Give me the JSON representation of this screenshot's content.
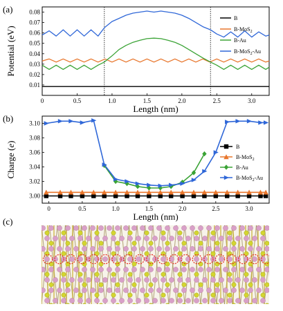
{
  "panels": {
    "a": {
      "label": "(a)"
    },
    "b": {
      "label": "(b)"
    },
    "c": {
      "label": "(c)"
    }
  },
  "chart_data": [
    {
      "type": "line",
      "panel": "(a)",
      "xlabel": "Length (nm)",
      "ylabel": "Potential (eV)",
      "xlim": [
        0,
        3.25
      ],
      "ylim": [
        0,
        0.085
      ],
      "xticks": [
        0,
        0.5,
        1.0,
        1.5,
        2.0,
        2.5,
        3.0
      ],
      "xtick_labels": [
        "0",
        "0.5",
        "1.0",
        "1.5",
        "2.0",
        "2.5",
        "3.0"
      ],
      "yticks": [
        0.01,
        0.02,
        0.03,
        0.04,
        0.05,
        0.06,
        0.07,
        0.08
      ],
      "ytick_labels": [
        "0.01",
        "0.02",
        "0.03",
        "0.04",
        "0.05",
        "0.06",
        "0.07",
        "0.08"
      ],
      "vlines": [
        0.89,
        2.41
      ],
      "legend_position": "right",
      "series": [
        {
          "name": "B",
          "color": "#000000",
          "x": [
            0,
            3.25
          ],
          "y": [
            0.0085,
            0.0085
          ]
        },
        {
          "name": "B-MoS",
          "name_sub": "2",
          "color": "#e8762c",
          "x": [
            0,
            0.1,
            0.2,
            0.3,
            0.4,
            0.5,
            0.6,
            0.7,
            0.8,
            0.9,
            1.0,
            1.1,
            1.2,
            1.3,
            1.4,
            1.5,
            1.6,
            1.7,
            1.8,
            1.9,
            2.0,
            2.1,
            2.2,
            2.3,
            2.4,
            2.5,
            2.6,
            2.7,
            2.8,
            2.9,
            3.0,
            3.1,
            3.2,
            3.25
          ],
          "y": [
            0.033,
            0.035,
            0.032,
            0.035,
            0.032,
            0.035,
            0.032,
            0.035,
            0.032,
            0.035,
            0.032,
            0.035,
            0.032,
            0.035,
            0.032,
            0.035,
            0.032,
            0.035,
            0.032,
            0.035,
            0.032,
            0.035,
            0.032,
            0.035,
            0.032,
            0.035,
            0.032,
            0.035,
            0.032,
            0.035,
            0.032,
            0.035,
            0.032,
            0.033
          ]
        },
        {
          "name": "B-Au",
          "color": "#3aa335",
          "x": [
            0,
            0.1,
            0.2,
            0.3,
            0.4,
            0.5,
            0.6,
            0.7,
            0.8,
            0.89,
            1.0,
            1.1,
            1.2,
            1.3,
            1.4,
            1.5,
            1.6,
            1.7,
            1.8,
            1.9,
            2.0,
            2.1,
            2.2,
            2.3,
            2.41,
            2.5,
            2.6,
            2.7,
            2.8,
            2.9,
            3.0,
            3.1,
            3.2,
            3.25
          ],
          "y": [
            0.029,
            0.025,
            0.029,
            0.025,
            0.029,
            0.025,
            0.029,
            0.025,
            0.029,
            0.032,
            0.038,
            0.044,
            0.048,
            0.051,
            0.053,
            0.0545,
            0.055,
            0.0545,
            0.053,
            0.051,
            0.048,
            0.044,
            0.04,
            0.036,
            0.032,
            0.029,
            0.025,
            0.029,
            0.025,
            0.029,
            0.025,
            0.029,
            0.025,
            0.027
          ]
        },
        {
          "name": "B-MoS",
          "name_sub": "2",
          "name_tail": "-Au",
          "color": "#2f67d8",
          "x": [
            0,
            0.1,
            0.2,
            0.3,
            0.4,
            0.5,
            0.6,
            0.7,
            0.8,
            0.89,
            1.0,
            1.1,
            1.2,
            1.3,
            1.4,
            1.5,
            1.6,
            1.7,
            1.8,
            1.9,
            2.0,
            2.1,
            2.2,
            2.3,
            2.41,
            2.5,
            2.6,
            2.7,
            2.8,
            2.9,
            3.0,
            3.1,
            3.2,
            3.25
          ],
          "y": [
            0.058,
            0.062,
            0.057,
            0.063,
            0.057,
            0.063,
            0.057,
            0.063,
            0.057,
            0.065,
            0.071,
            0.074,
            0.077,
            0.079,
            0.08,
            0.081,
            0.08,
            0.081,
            0.08,
            0.079,
            0.077,
            0.074,
            0.07,
            0.066,
            0.063,
            0.059,
            0.056,
            0.061,
            0.056,
            0.062,
            0.056,
            0.061,
            0.057,
            0.058
          ]
        }
      ]
    },
    {
      "type": "line",
      "panel": "(b)",
      "xlabel": "Length (nm)",
      "ylabel": "Charge (e)",
      "xlim": [
        -0.1,
        3.3
      ],
      "ylim": [
        2.99,
        3.11
      ],
      "xticks": [
        0,
        0.5,
        1.0,
        1.5,
        2.0,
        2.5,
        3.0
      ],
      "xtick_labels": [
        "0",
        "0.5",
        "1.0",
        "1.5",
        "2.0",
        "2.5",
        "3.0"
      ],
      "yticks": [
        3.0,
        3.02,
        3.04,
        3.06,
        3.08,
        3.1
      ],
      "ytick_labels": [
        "3.00",
        "3.02",
        "3.04",
        "3.06",
        "3.08",
        "3.10"
      ],
      "legend_position": "right",
      "x": [
        -0.04,
        0.17,
        0.33,
        0.5,
        0.67,
        0.83,
        1.0,
        1.17,
        1.33,
        1.5,
        1.67,
        1.83,
        2.0,
        2.17,
        2.33,
        2.5,
        2.67,
        2.83,
        3.0,
        3.17,
        3.25
      ],
      "series": [
        {
          "name": "B",
          "color": "#000000",
          "marker": "square",
          "y": [
            3.0,
            3.0,
            3.0,
            3.0,
            3.0,
            3.0,
            3.0,
            3.0,
            3.0,
            3.0,
            3.0,
            3.0,
            3.0,
            3.0,
            3.0,
            3.0,
            3.0,
            3.0,
            3.0,
            3.0,
            3.0
          ]
        },
        {
          "name": "B-MoS",
          "name_sub": "2",
          "color": "#e8762c",
          "marker": "triangle",
          "y": [
            3.005,
            3.005,
            3.005,
            3.005,
            3.005,
            3.005,
            3.005,
            3.005,
            3.005,
            3.005,
            3.005,
            3.005,
            3.005,
            3.005,
            3.005,
            3.005,
            3.005,
            3.005,
            3.005,
            3.005,
            3.005
          ]
        },
        {
          "name": "B-Au",
          "color": "#3aa335",
          "marker": "diamond",
          "x": [
            0.83,
            1.0,
            1.17,
            1.33,
            1.5,
            1.67,
            1.83,
            2.0,
            2.17,
            2.33
          ],
          "y": [
            3.042,
            3.02,
            3.017,
            3.013,
            3.011,
            3.011,
            3.013,
            3.019,
            3.032,
            3.058
          ]
        },
        {
          "name": "B-MoS",
          "name_sub": "2",
          "name_tail": "-Au",
          "color": "#2f67d8",
          "marker": "triangle-right",
          "y": [
            3.1,
            3.103,
            3.103,
            3.101,
            3.104,
            3.043,
            3.023,
            3.02,
            3.017,
            3.015,
            3.014,
            3.015,
            3.017,
            3.022,
            3.034,
            3.06,
            3.102,
            3.103,
            3.103,
            3.101,
            3.101
          ]
        }
      ]
    }
  ],
  "structure": {
    "colors": {
      "sulfur": "#d4d630",
      "molybdenum": "#d9a0c8",
      "bond": "#9d8a52",
      "gold": "#c9b030",
      "marker": "#e53224"
    }
  }
}
